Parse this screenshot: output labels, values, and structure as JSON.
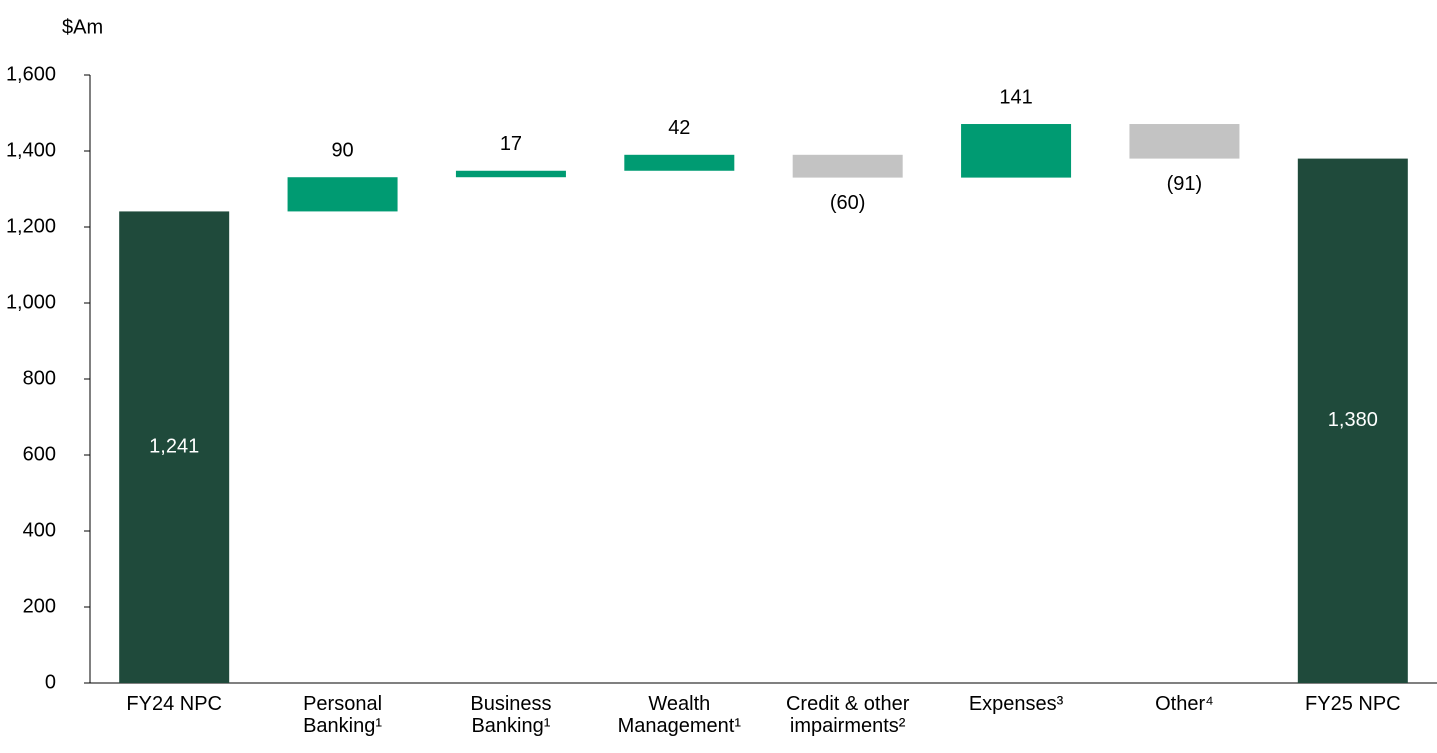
{
  "chart_data": {
    "type": "waterfall",
    "y_label": "$Am",
    "categories": [
      "FY24 NPC",
      "Personal Banking¹",
      "Business Banking¹",
      "Wealth Management¹",
      "Credit & other impairments²",
      "Expenses³",
      "Other⁴",
      "FY25 NPC"
    ],
    "values": [
      1241,
      90,
      17,
      42,
      -60,
      141,
      -91,
      1380
    ],
    "value_labels": [
      "1,241",
      "90",
      "17",
      "42",
      "(60)",
      "141",
      "(91)",
      "1,380"
    ],
    "total_color": "#1f4a3b",
    "increase_color": "#009b72",
    "decrease_color": "#c3c3c3",
    "ylim": [
      0,
      1600
    ],
    "yticks": [
      0,
      200,
      400,
      600,
      800,
      {
        "value": 1000,
        "label": "1,000"
      },
      {
        "value": 1200,
        "label": "1,200"
      },
      {
        "value": 1400,
        "label": "1,400"
      },
      {
        "value": 1600,
        "label": "1,600"
      }
    ]
  }
}
